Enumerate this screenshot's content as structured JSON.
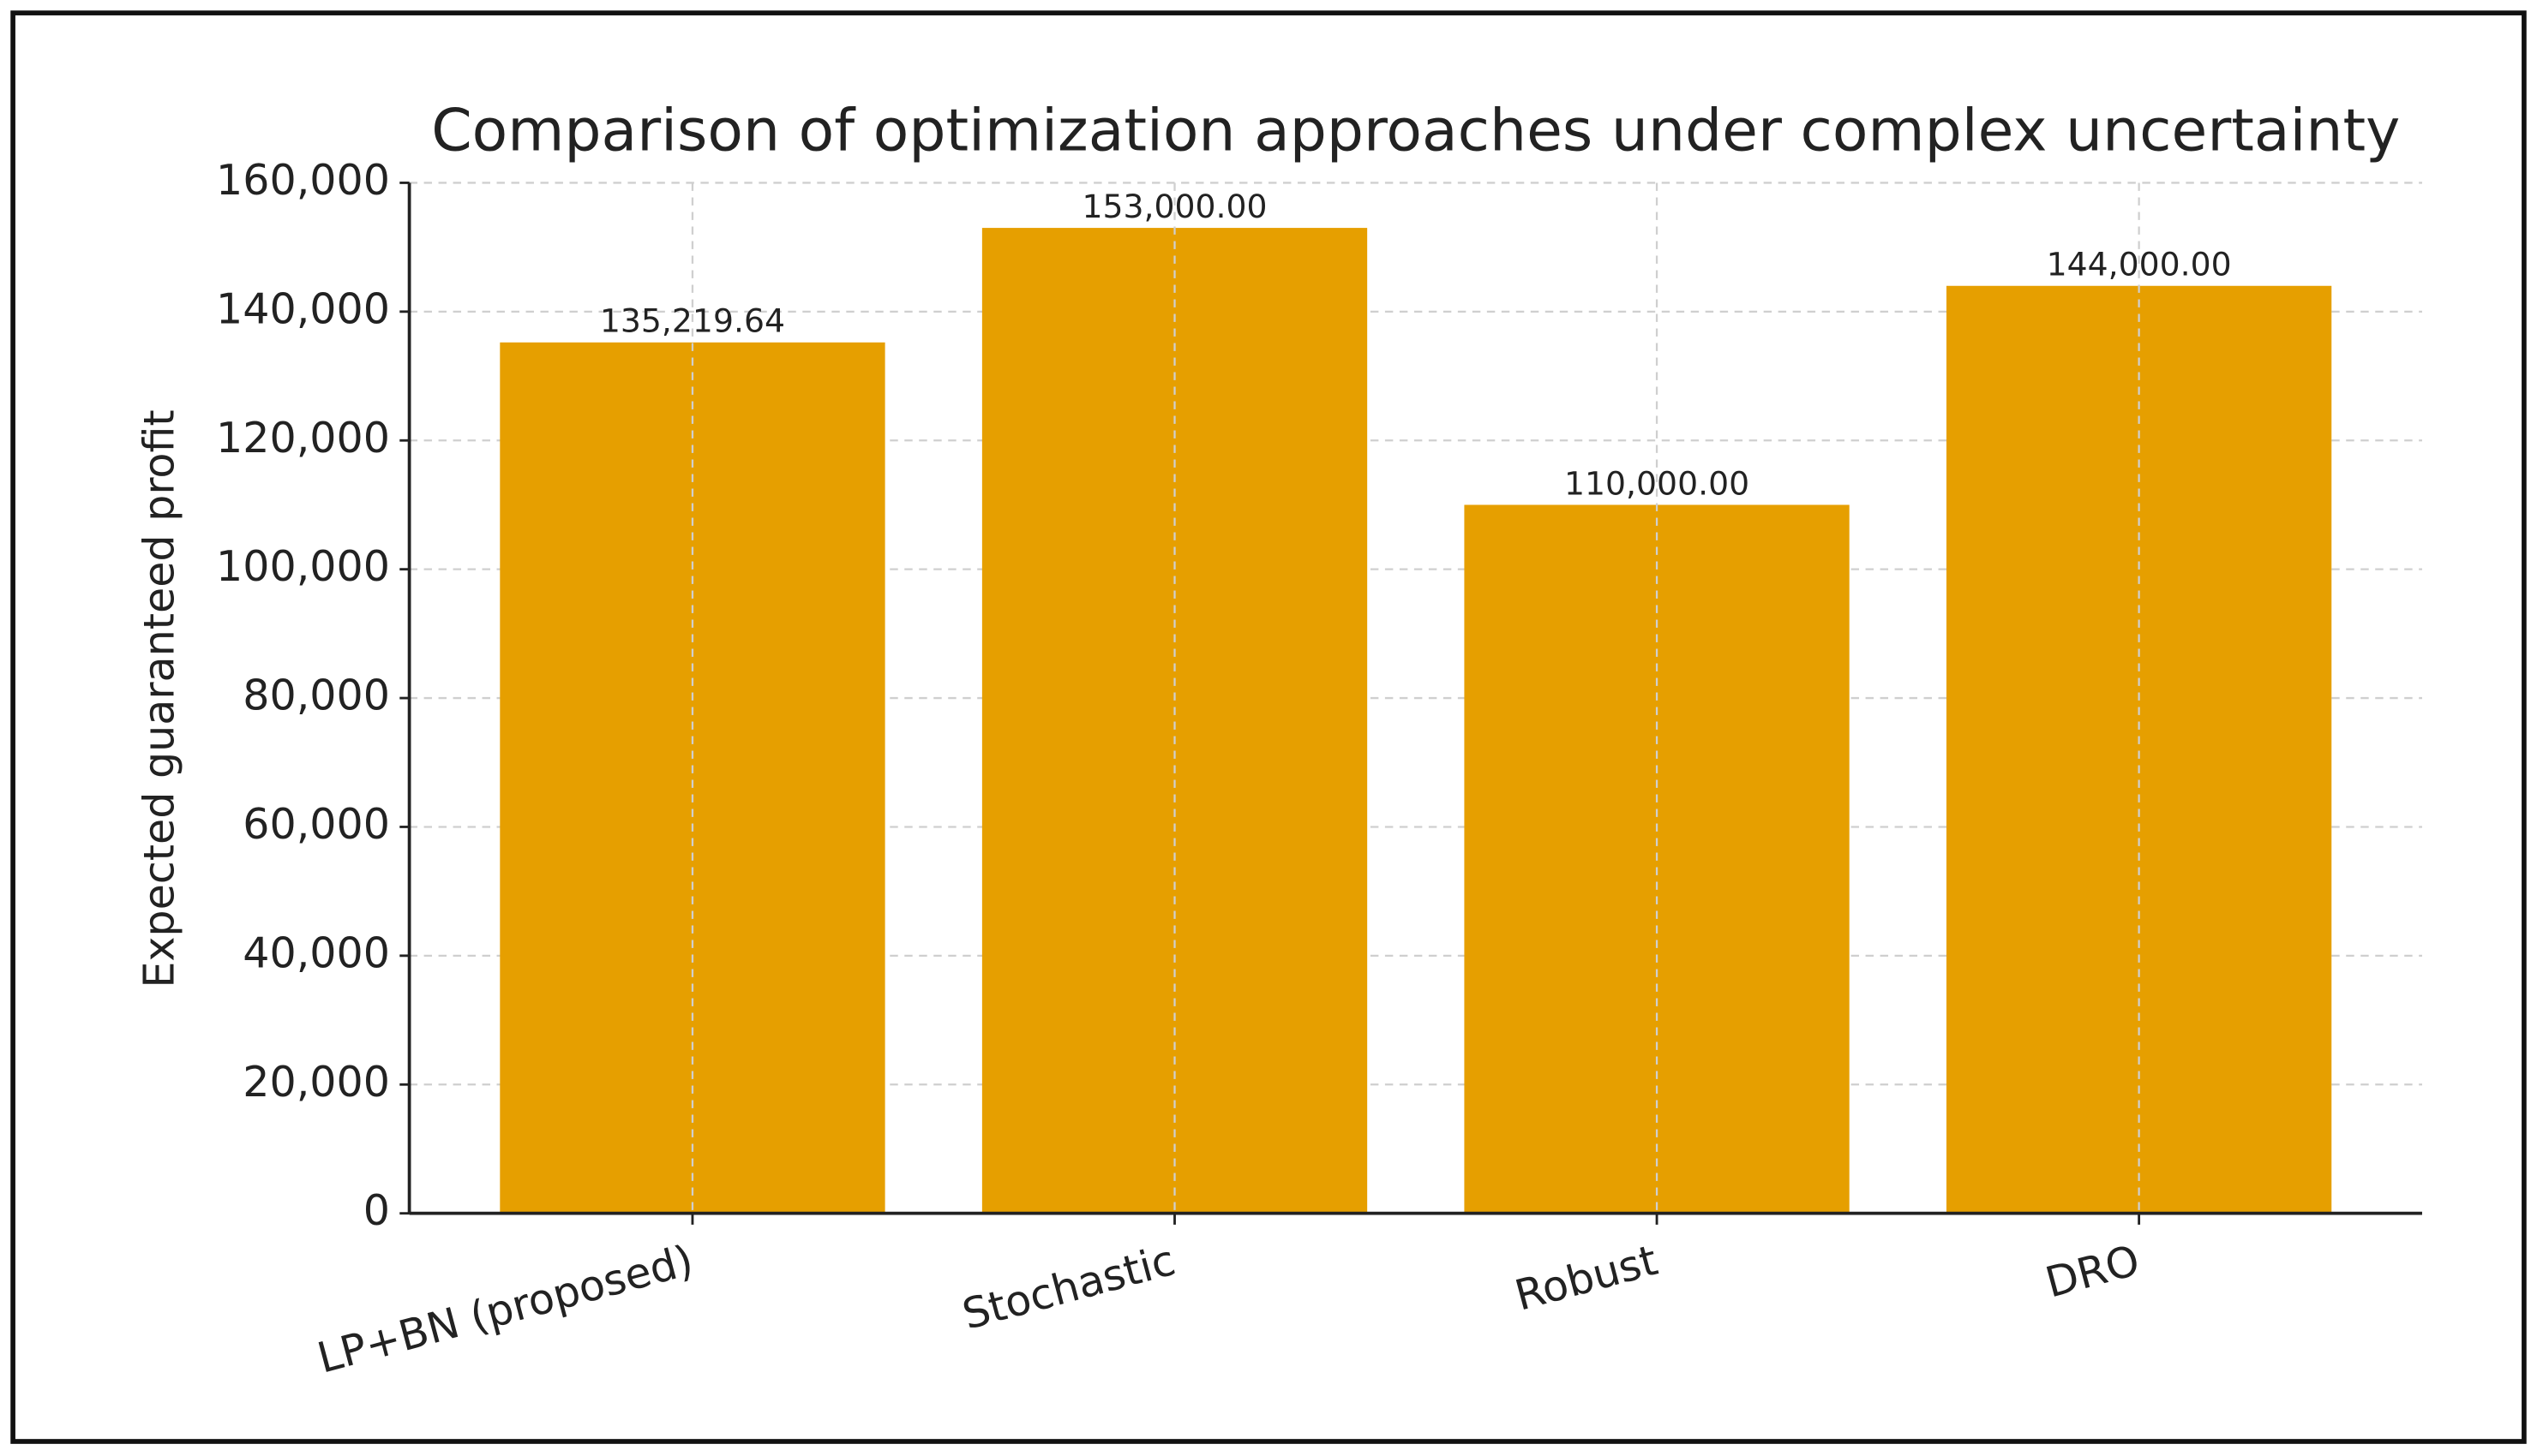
{
  "chart_data": {
    "type": "bar",
    "title": "Comparison of optimization approaches under complex uncertainty",
    "y_label": "Expected guaranteed profit",
    "categories": [
      "LP+BN (proposed)",
      "Stochastic",
      "Robust",
      "DRO"
    ],
    "values": [
      135219.64,
      153000,
      110000,
      144000
    ],
    "value_labels": [
      "135,219.64",
      "153,000.00",
      "110,000.00",
      "144,000.00"
    ],
    "color": "#e69f00",
    "ylim": [
      0,
      160000
    ],
    "yticks": [
      0,
      {
        "value": 20000,
        "label": "20,000"
      },
      {
        "value": 40000,
        "label": "40,000"
      },
      {
        "value": 60000,
        "label": "60,000"
      },
      {
        "value": 80000,
        "label": "80,000"
      },
      {
        "value": 100000,
        "label": "100,000"
      },
      {
        "value": 120000,
        "label": "120,000"
      },
      {
        "value": 140000,
        "label": "140,000"
      },
      {
        "value": 160000,
        "label": "160,000"
      }
    ],
    "grid": true
  }
}
